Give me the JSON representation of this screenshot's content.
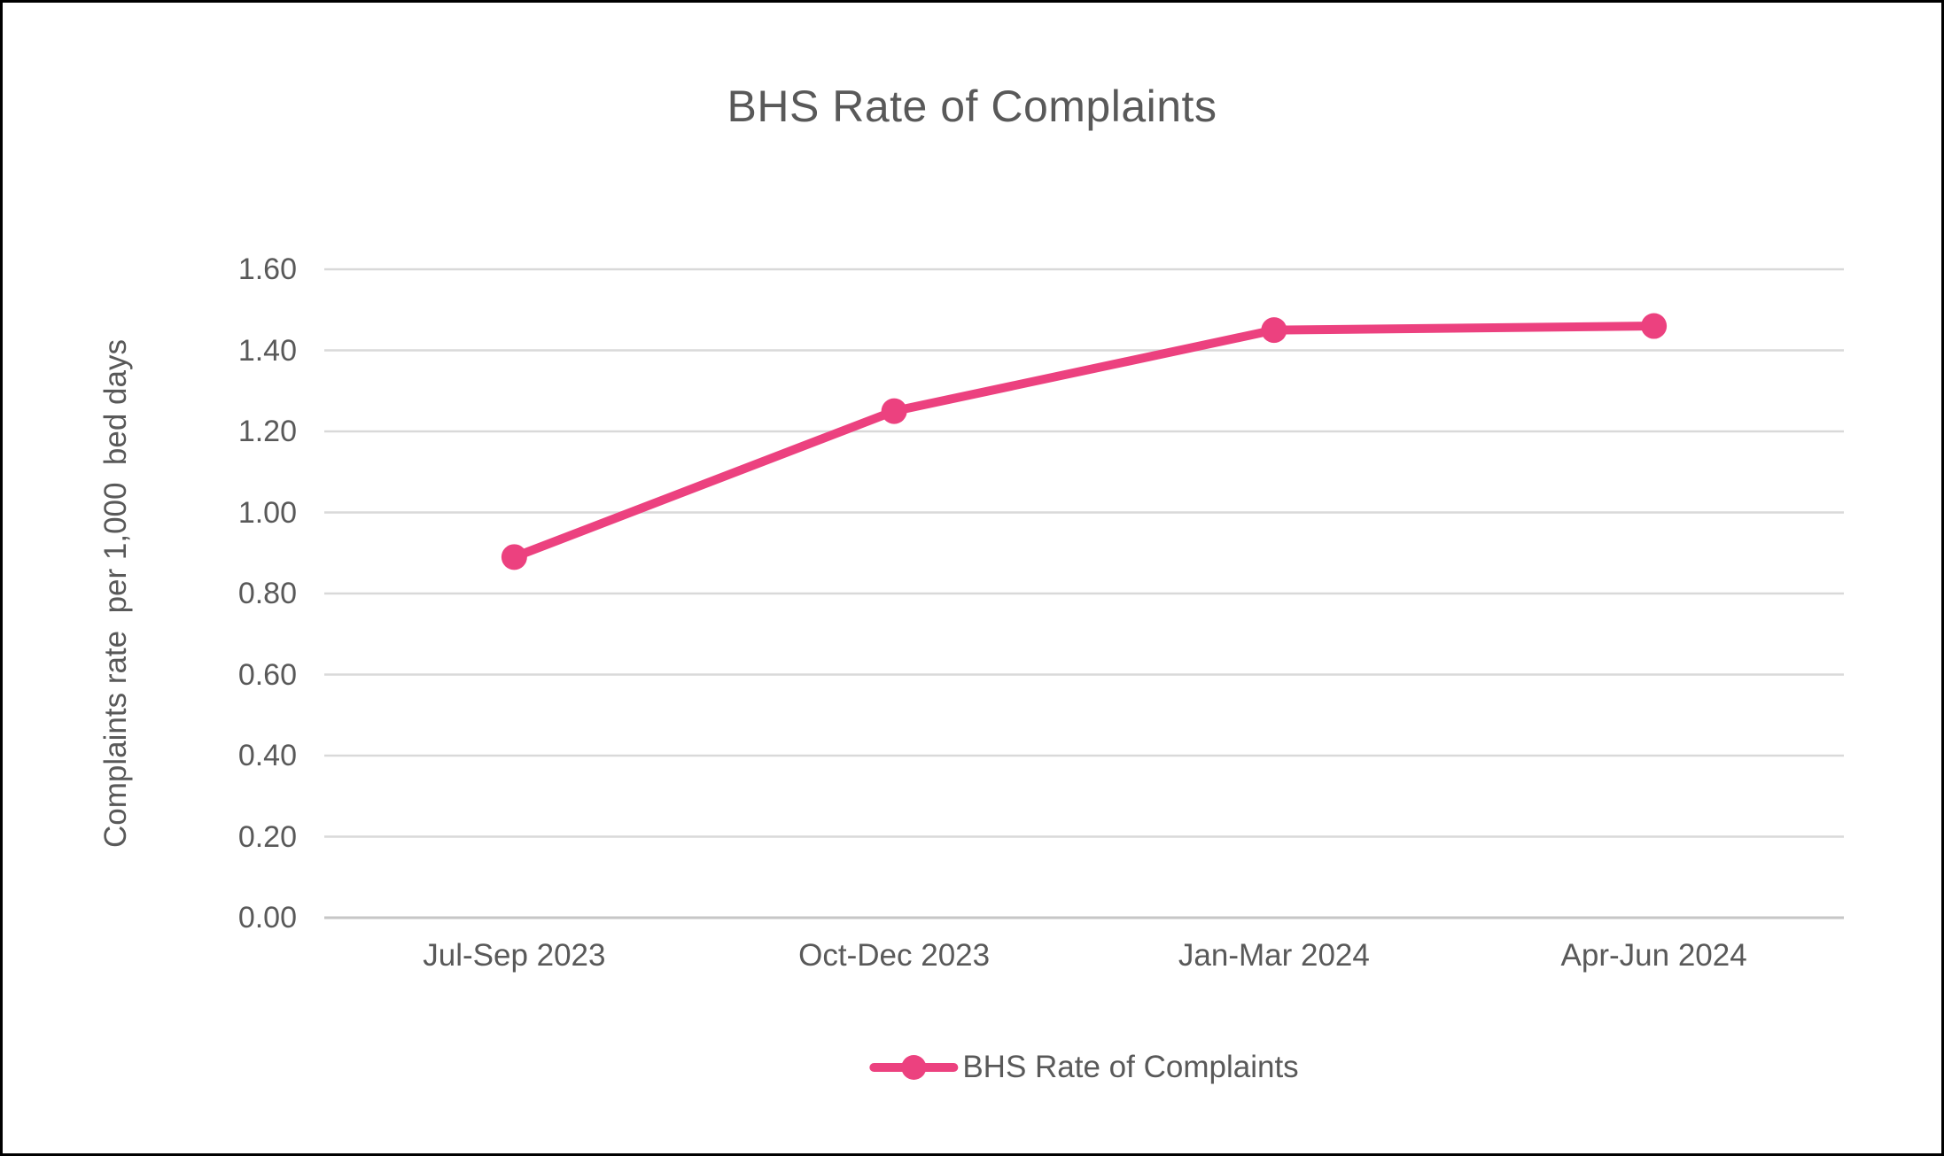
{
  "window": {
    "background": "#ffffff",
    "border_color": "#000000"
  },
  "colors": {
    "text": "#595959",
    "gridline": "#D9D9D9",
    "axis_line": "#C6C6C6",
    "series": "#EC417F"
  },
  "chart_data": {
    "type": "line",
    "title": "BHS Rate of Complaints",
    "xlabel": "",
    "ylabel": "Complaints rate  per 1,000  bed days",
    "categories": [
      "Jul-Sep 2023",
      "Oct-Dec 2023",
      "Jan-Mar 2024",
      "Apr-Jun 2024"
    ],
    "series": [
      {
        "name": "BHS Rate of Complaints",
        "values": [
          0.89,
          1.25,
          1.45,
          1.46
        ],
        "color": "#EC417F"
      }
    ],
    "ylim": [
      0,
      1.6
    ],
    "ytick_step": 0.2,
    "ytick_labels": [
      "0.00",
      "0.20",
      "0.40",
      "0.60",
      "0.80",
      "1.00",
      "1.20",
      "1.40",
      "1.60"
    ],
    "grid": "horizontal-major",
    "legend_position": "bottom",
    "legend_label": "BHS Rate of Complaints"
  }
}
